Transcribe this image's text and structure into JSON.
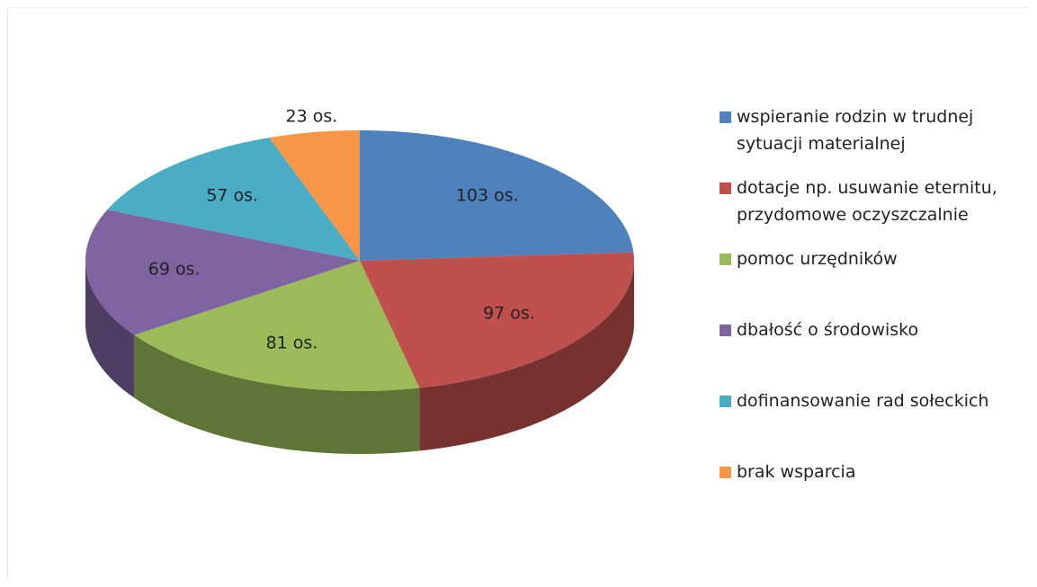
{
  "chart_data": {
    "type": "pie",
    "three_d": true,
    "categories": [
      "wspieranie rodzin w trudnej sytuacji materialnej",
      "dotacje np. usuwanie eternitu, przydomowe oczyszczalnie",
      "pomoc urzędników",
      "dbałość o środowisko",
      "dofinansowanie rad sołeckich",
      "brak wsparcia"
    ],
    "values": [
      103,
      97,
      81,
      69,
      57,
      23
    ],
    "value_labels": [
      "103 os.",
      "97 os.",
      "81 os.",
      "69 os.",
      "57 os.",
      "23 os."
    ],
    "colors": [
      "#4f81bd",
      "#c0504d",
      "#9bbb59",
      "#8064a2",
      "#4bacc6",
      "#f79646"
    ],
    "legend": "right"
  }
}
